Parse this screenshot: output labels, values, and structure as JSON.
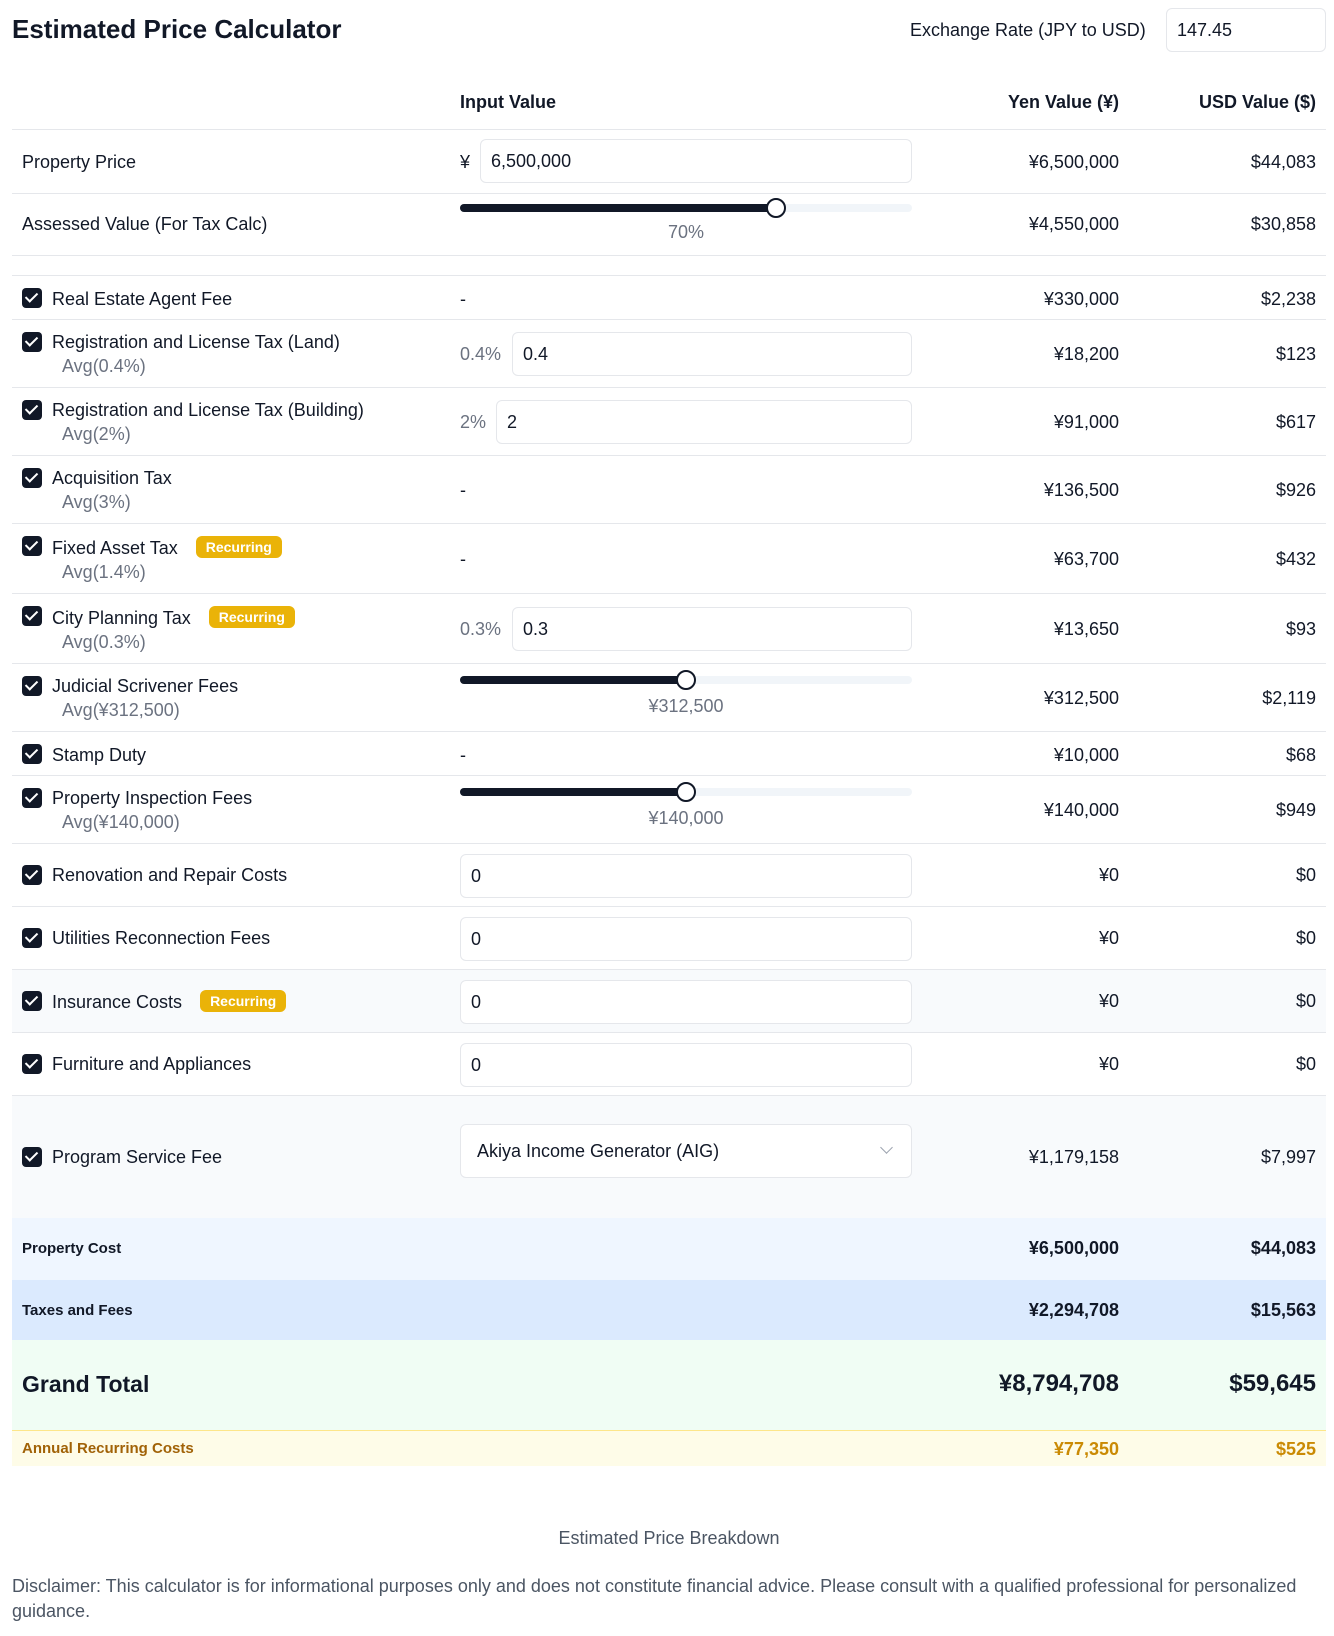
{
  "title": "Estimated Price Calculator",
  "exchange": {
    "label": "Exchange Rate (JPY to USD)",
    "value": "147.45"
  },
  "headers": {
    "input": "Input Value",
    "yen": "Yen Value (¥)",
    "usd": "USD Value ($)"
  },
  "property_price": {
    "label": "Property Price",
    "currency": "¥",
    "value": "6,500,000",
    "yen": "¥6,500,000",
    "usd": "$44,083"
  },
  "assessed": {
    "label": "Assessed Value (For Tax Calc)",
    "slider_fraction": 0.7,
    "slider_label": "70%",
    "yen": "¥4,550,000",
    "usd": "$30,858"
  },
  "items": {
    "agent_fee": {
      "label": "Real Estate Agent Fee",
      "input": "-",
      "yen": "¥330,000",
      "usd": "$2,238"
    },
    "reg_land": {
      "label": "Registration and License Tax (Land)",
      "avg": "Avg(0.4%)",
      "pct": "0.4%",
      "value": "0.4",
      "yen": "¥18,200",
      "usd": "$123"
    },
    "reg_building": {
      "label": "Registration and License Tax (Building)",
      "avg": "Avg(2%)",
      "pct": "2%",
      "value": "2",
      "yen": "¥91,000",
      "usd": "$617"
    },
    "acquisition": {
      "label": "Acquisition Tax",
      "avg": "Avg(3%)",
      "input": "-",
      "yen": "¥136,500",
      "usd": "$926"
    },
    "fixed_asset": {
      "label": "Fixed Asset Tax",
      "badge": "Recurring",
      "avg": "Avg(1.4%)",
      "input": "-",
      "yen": "¥63,700",
      "usd": "$432"
    },
    "city_planning": {
      "label": "City Planning Tax",
      "badge": "Recurring",
      "avg": "Avg(0.3%)",
      "pct": "0.3%",
      "value": "0.3",
      "yen": "¥13,650",
      "usd": "$93"
    },
    "scrivener": {
      "label": "Judicial Scrivener Fees",
      "avg": "Avg(¥312,500)",
      "slider_fraction": 0.5,
      "slider_label": "¥312,500",
      "yen": "¥312,500",
      "usd": "$2,119"
    },
    "stamp": {
      "label": "Stamp Duty",
      "input": "-",
      "yen": "¥10,000",
      "usd": "$68"
    },
    "inspection": {
      "label": "Property Inspection Fees",
      "avg": "Avg(¥140,000)",
      "slider_fraction": 0.5,
      "slider_label": "¥140,000",
      "yen": "¥140,000",
      "usd": "$949"
    },
    "renovation": {
      "label": "Renovation and Repair Costs",
      "value": "0",
      "yen": "¥0",
      "usd": "$0"
    },
    "utilities": {
      "label": "Utilities Reconnection Fees",
      "value": "0",
      "yen": "¥0",
      "usd": "$0"
    },
    "insurance": {
      "label": "Insurance Costs",
      "badge": "Recurring",
      "value": "0",
      "yen": "¥0",
      "usd": "$0"
    },
    "furniture": {
      "label": "Furniture and Appliances",
      "value": "0",
      "yen": "¥0",
      "usd": "$0"
    },
    "program": {
      "label": "Program Service Fee",
      "selected": "Akiya Income Generator (AIG)",
      "yen": "¥1,179,158",
      "usd": "$7,997"
    }
  },
  "summary": {
    "property_cost": {
      "label": "Property Cost",
      "yen": "¥6,500,000",
      "usd": "$44,083"
    },
    "taxes_fees": {
      "label": "Taxes and Fees",
      "yen": "¥2,294,708",
      "usd": "$15,563"
    },
    "grand_total": {
      "label": "Grand Total",
      "yen": "¥8,794,708",
      "usd": "$59,645"
    },
    "annual": {
      "label": "Annual Recurring Costs",
      "yen": "¥77,350",
      "usd": "$525"
    }
  },
  "caption": "Estimated Price Breakdown",
  "disclaimer": "Disclaimer: This calculator is for informational purposes only and does not constitute financial advice. Please consult with a qualified professional for personalized guidance.",
  "colors": {
    "badge": "#eab308",
    "annual_text": "#a16207",
    "property_bg": "#eff6ff",
    "taxes_bg": "#dbeafe",
    "grand_bg": "#f0fdf4",
    "annual_bg": "#fefce8"
  }
}
